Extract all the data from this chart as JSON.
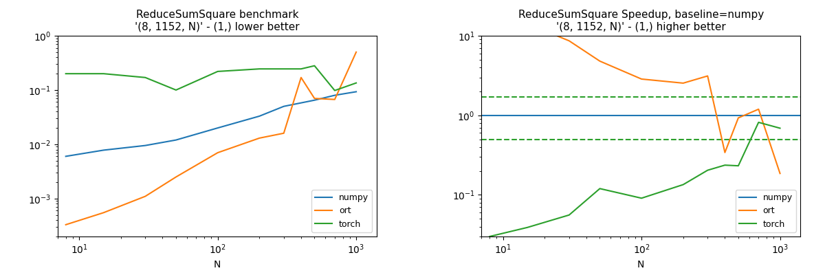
{
  "title1": "ReduceSumSquare benchmark\n'(8, 1152, N)' - (1,) lower better",
  "title2": "ReduceSumSquare Speedup, baseline=numpy\n'(8, 1152, N)' - (1,) higher better",
  "xlabel": "N",
  "colors": {
    "numpy": "#1f77b4",
    "ort": "#ff7f0e",
    "torch": "#2ca02c"
  },
  "N_numpy": [
    8,
    15,
    30,
    50,
    100,
    200,
    300,
    500,
    700,
    1000
  ],
  "numpy_t": [
    0.006,
    0.0078,
    0.0095,
    0.012,
    0.02,
    0.033,
    0.05,
    0.065,
    0.08,
    0.093
  ],
  "N_ort": [
    8,
    15,
    30,
    50,
    100,
    200,
    300,
    400,
    500,
    700,
    1000
  ],
  "ort_t": [
    0.00033,
    0.00055,
    0.0011,
    0.0025,
    0.007,
    0.013,
    0.016,
    0.17,
    0.07,
    0.067,
    0.5
  ],
  "N_torch": [
    8,
    15,
    30,
    50,
    100,
    200,
    300,
    400,
    500,
    700,
    1000
  ],
  "torch_t": [
    0.2,
    0.2,
    0.17,
    0.1,
    0.22,
    0.245,
    0.245,
    0.245,
    0.28,
    0.098,
    0.135
  ],
  "speedup_dashed_upper": 1.7,
  "speedup_dashed_lower": 0.5
}
